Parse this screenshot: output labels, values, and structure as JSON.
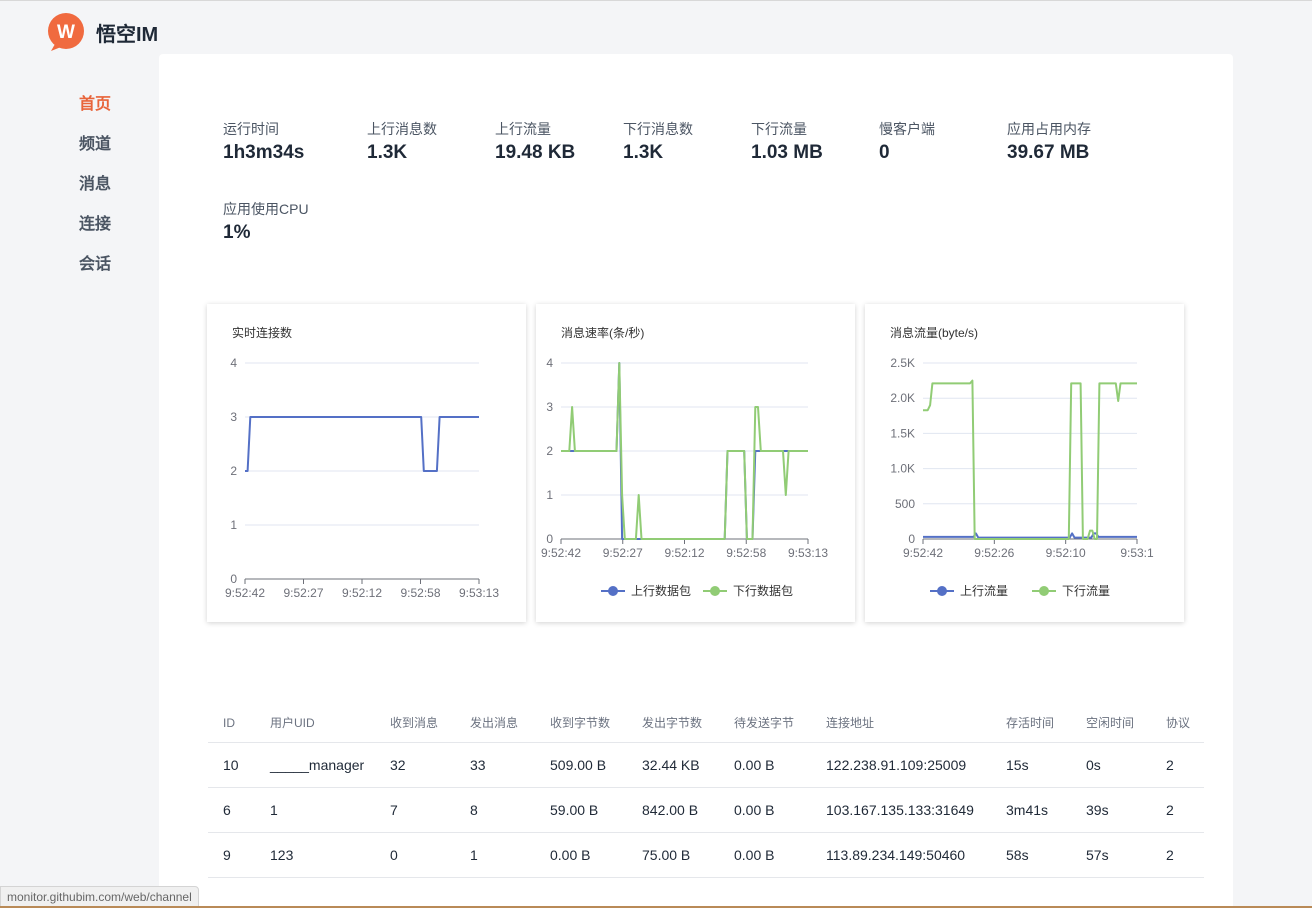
{
  "app": {
    "name": "悟空IM",
    "logo_letter": "W",
    "accent": "#e8643a"
  },
  "nav": {
    "items": [
      {
        "label": "首页",
        "active": true
      },
      {
        "label": "频道",
        "active": false
      },
      {
        "label": "消息",
        "active": false
      },
      {
        "label": "连接",
        "active": false
      },
      {
        "label": "会话",
        "active": false
      }
    ]
  },
  "stats": [
    {
      "label": "运行时间",
      "value": "1h3m34s"
    },
    {
      "label": "上行消息数",
      "value": "1.3K"
    },
    {
      "label": "上行流量",
      "value": "19.48 KB"
    },
    {
      "label": "下行消息数",
      "value": "1.3K"
    },
    {
      "label": "下行流量",
      "value": "1.03 MB"
    },
    {
      "label": "慢客户端",
      "value": "0"
    },
    {
      "label": "应用占用内存",
      "value": "39.67 MB"
    },
    {
      "label": "应用使用CPU",
      "value": "1%"
    }
  ],
  "chart_data": [
    {
      "type": "line",
      "title": "实时连接数",
      "x_ticks": [
        "9:52:42",
        "9:52:27",
        "9:52:12",
        "9:52:58",
        "9:53:13"
      ],
      "ylim": [
        0,
        4
      ],
      "y_ticks": [
        "0",
        "1",
        "2",
        "3",
        "4"
      ],
      "grid": true,
      "legend": "none",
      "series": [
        {
          "color": "#5470c6",
          "values": [
            2,
            2,
            3,
            3,
            3,
            3,
            3,
            3,
            3,
            3,
            3,
            3,
            3,
            3,
            3,
            3,
            3,
            3,
            3,
            3,
            3,
            3,
            3,
            3,
            3,
            3,
            3,
            3,
            3,
            3,
            3,
            3,
            3,
            3,
            3,
            3,
            3,
            3,
            3,
            3,
            3,
            3,
            3,
            3,
            3,
            3,
            3,
            3,
            3,
            3,
            3,
            3,
            3,
            3,
            3,
            3,
            3,
            3,
            3,
            3,
            3,
            3,
            3,
            3,
            3,
            3,
            3,
            3,
            2,
            2,
            2,
            2,
            2,
            2,
            3,
            3,
            3,
            3,
            3,
            3,
            3,
            3,
            3,
            3,
            3,
            3,
            3,
            3,
            3,
            3
          ]
        }
      ]
    },
    {
      "type": "line",
      "title": "消息速率(条/秒)",
      "x_ticks": [
        "9:52:42",
        "9:52:27",
        "9:52:12",
        "9:52:58",
        "9:53:13"
      ],
      "ylim": [
        0,
        4
      ],
      "y_ticks": [
        "0",
        "1",
        "2",
        "3",
        "4"
      ],
      "grid": true,
      "legend": "bottom",
      "series": [
        {
          "name": "上行数据包",
          "color": "#5470c6",
          "values": [
            2,
            2,
            2,
            2,
            2,
            2,
            2,
            2,
            2,
            2,
            2,
            2,
            2,
            2,
            2,
            2,
            2,
            2,
            2,
            2,
            2,
            4,
            0,
            0,
            0,
            0,
            0,
            0,
            0,
            0,
            0,
            0,
            0,
            0,
            0,
            0,
            0,
            0,
            0,
            0,
            0,
            0,
            0,
            0,
            0,
            0,
            0,
            0,
            0,
            0,
            0,
            0,
            0,
            0,
            0,
            0,
            0,
            0,
            0,
            0,
            2,
            2,
            2,
            2,
            2,
            2,
            2,
            0,
            0,
            0,
            2,
            2,
            2,
            2,
            2,
            2,
            2,
            2,
            2,
            2,
            2,
            2,
            2,
            2,
            2,
            2,
            2,
            2,
            2,
            2
          ]
        },
        {
          "name": "下行数据包",
          "color": "#91cc75",
          "values": [
            2,
            2,
            2,
            2,
            3,
            2,
            2,
            2,
            2,
            2,
            2,
            2,
            2,
            2,
            2,
            2,
            2,
            2,
            2,
            2,
            2,
            4,
            1,
            0,
            0,
            0,
            0,
            0,
            1,
            0,
            0,
            0,
            0,
            0,
            0,
            0,
            0,
            0,
            0,
            0,
            0,
            0,
            0,
            0,
            0,
            0,
            0,
            0,
            0,
            0,
            0,
            0,
            0,
            0,
            0,
            0,
            0,
            0,
            0,
            0,
            2,
            2,
            2,
            2,
            2,
            2,
            2,
            0,
            0,
            0,
            3,
            3,
            2,
            2,
            2,
            2,
            2,
            2,
            2,
            2,
            2,
            1,
            2,
            2,
            2,
            2,
            2,
            2,
            2,
            2
          ]
        }
      ]
    },
    {
      "type": "line",
      "title": "消息流量(byte/s)",
      "x_ticks": [
        "9:52:42",
        "9:52:26",
        "9:52:10",
        "9:53:1"
      ],
      "ylim": [
        0,
        2500
      ],
      "y_ticks": [
        "0",
        "500",
        "1.0K",
        "1.5K",
        "2.0K",
        "2.5K"
      ],
      "grid": true,
      "legend": "bottom",
      "series": [
        {
          "name": "上行流量",
          "color": "#5470c6",
          "values": [
            30,
            30,
            30,
            30,
            30,
            30,
            30,
            30,
            30,
            30,
            30,
            30,
            30,
            30,
            30,
            30,
            30,
            30,
            30,
            30,
            30,
            30,
            80,
            20,
            20,
            20,
            20,
            20,
            20,
            20,
            20,
            20,
            20,
            20,
            20,
            20,
            20,
            20,
            20,
            20,
            20,
            20,
            20,
            20,
            20,
            20,
            20,
            20,
            20,
            20,
            20,
            20,
            20,
            20,
            20,
            20,
            20,
            20,
            20,
            20,
            20,
            20,
            80,
            20,
            20,
            20,
            20,
            20,
            20,
            20,
            20,
            80,
            80,
            30,
            30,
            30,
            30,
            30,
            30,
            30,
            30,
            30,
            30,
            30,
            30,
            30,
            30,
            30,
            30,
            30
          ]
        },
        {
          "name": "下行流量",
          "color": "#91cc75",
          "values": [
            1830,
            1830,
            1830,
            1900,
            2210,
            2210,
            2210,
            2210,
            2210,
            2210,
            2210,
            2210,
            2210,
            2210,
            2210,
            2210,
            2210,
            2210,
            2210,
            2210,
            2210,
            2250,
            0,
            0,
            0,
            0,
            0,
            0,
            0,
            0,
            0,
            0,
            0,
            0,
            0,
            0,
            0,
            0,
            0,
            0,
            0,
            0,
            0,
            0,
            0,
            0,
            0,
            0,
            0,
            0,
            0,
            0,
            0,
            0,
            0,
            0,
            0,
            0,
            0,
            0,
            0,
            0,
            0,
            2210,
            2210,
            2210,
            2210,
            2210,
            0,
            0,
            0,
            120,
            120,
            0,
            0,
            2210,
            2210,
            2210,
            2210,
            2210,
            2210,
            2210,
            2210,
            1960,
            2210,
            2210,
            2210,
            2210,
            2210,
            2210,
            2210,
            2210
          ]
        }
      ]
    }
  ],
  "table": {
    "headers": [
      "ID",
      "用户UID",
      "收到消息",
      "发出消息",
      "收到字节数",
      "发出字节数",
      "待发送字节",
      "连接地址",
      "存活时间",
      "空闲时间",
      "协议"
    ],
    "rows": [
      [
        "10",
        "_____manager",
        "32",
        "33",
        "509.00 B",
        "32.44 KB",
        "0.00 B",
        "122.238.91.109:25009",
        "15s",
        "0s",
        "2"
      ],
      [
        "6",
        "1",
        "7",
        "8",
        "59.00 B",
        "842.00 B",
        "0.00 B",
        "103.167.135.133:31649",
        "3m41s",
        "39s",
        "2"
      ],
      [
        "9",
        "123",
        "0",
        "1",
        "0.00 B",
        "75.00 B",
        "0.00 B",
        "113.89.234.149:50460",
        "58s",
        "57s",
        "2"
      ]
    ]
  },
  "status_bar": {
    "url": "monitor.githubim.com/web/channel"
  }
}
